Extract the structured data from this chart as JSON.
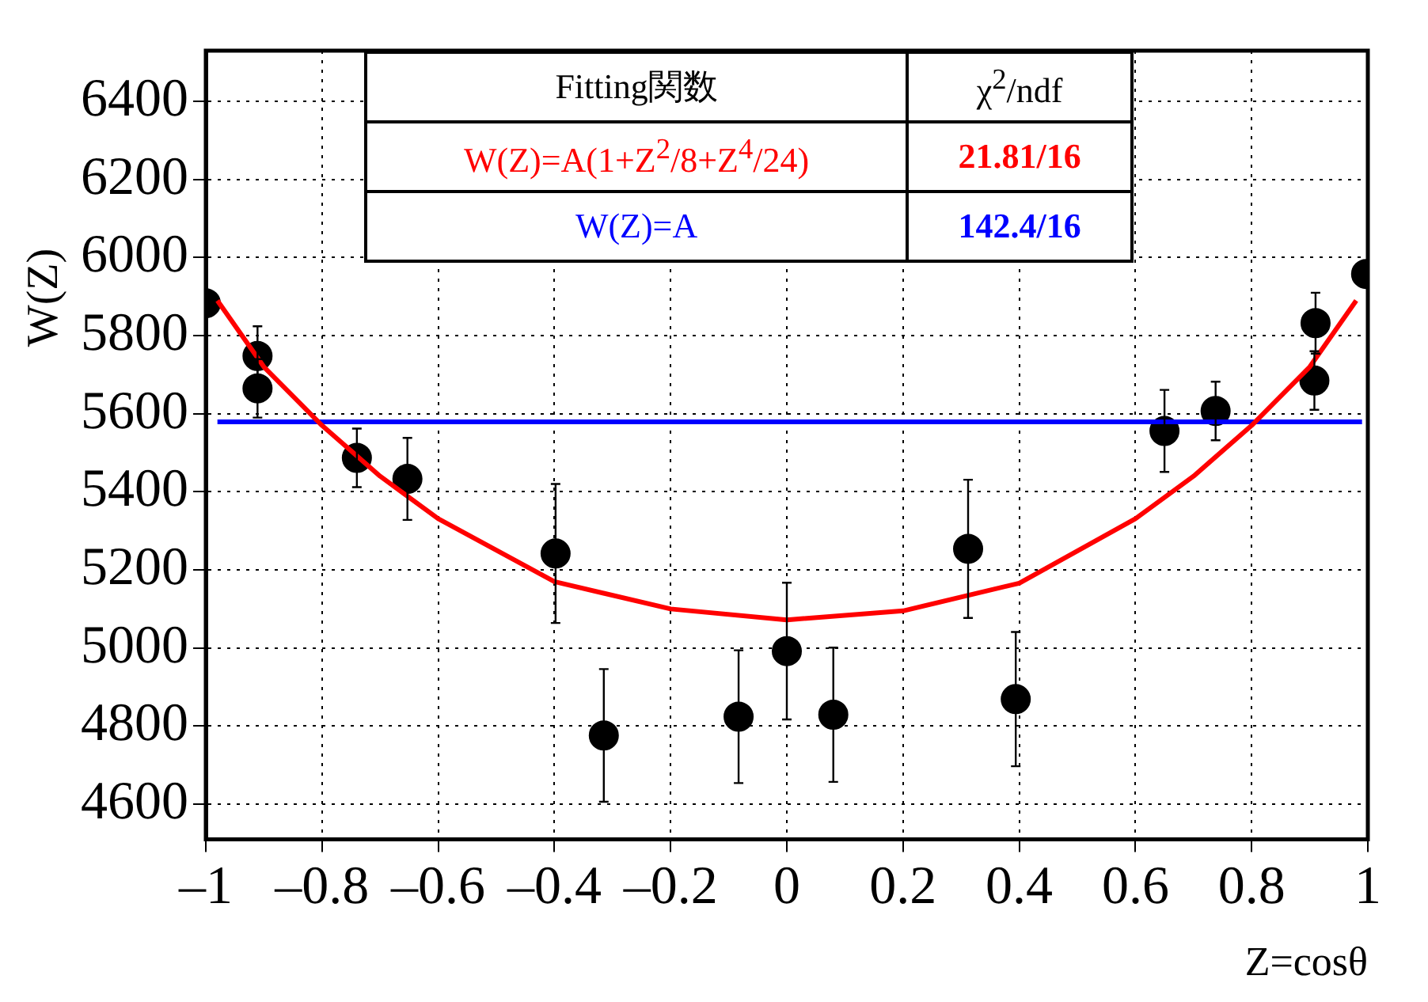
{
  "chart_data": {
    "type": "scatter",
    "xlabel": "Z=cosθ",
    "ylabel": "W(Z)",
    "x": [
      -1.0,
      -0.911,
      -0.911,
      -0.74,
      -0.653,
      -0.398,
      -0.315,
      -0.083,
      0.0,
      0.08,
      0.312,
      0.394,
      0.65,
      0.738,
      0.908,
      0.91,
      0.997
    ],
    "series": [
      {
        "color": "#000000",
        "marker": "circle",
        "values": [
          5883,
          5748,
          5665,
          5487,
          5433,
          5242,
          4776,
          4824,
          4992,
          4829,
          5254,
          4869,
          5556,
          5607,
          5685,
          5832,
          5958
        ],
        "errors": [
          null,
          76,
          75,
          75,
          105,
          178,
          170,
          170,
          175,
          172,
          177,
          172,
          105,
          75,
          75,
          78,
          null
        ]
      },
      {
        "type": "line",
        "name": "W(Z)=A(1+Z$^{2}$/8+Z$^{4}$/24)",
        "color": "#ff0000",
        "line_style": "solid",
        "marker": "none",
        "x": [
          -0.98,
          -0.9,
          -0.8,
          -0.7,
          -0.6,
          -0.4,
          -0.2,
          0,
          0.2,
          0.4,
          0.6,
          0.7,
          0.8,
          0.9,
          0.98
        ],
        "values": [
          5890,
          5720,
          5570,
          5440,
          5331,
          5170,
          5100,
          5072,
          5095,
          5166,
          5331,
          5440,
          5570,
          5720,
          5890
        ]
      },
      {
        "type": "line",
        "name": "W(Z)=A",
        "color": "#0000ff",
        "line_style": "solid",
        "marker": "none",
        "x": [
          -0.98,
          0.99
        ],
        "values": [
          5579,
          5579
        ]
      }
    ],
    "annotations": [
      "Fitting関数",
      "χ$^{2}$/ndf",
      "21.81/16",
      "142.4/16"
    ],
    "xlim": [
      -1,
      1
    ],
    "ylim": [
      4510,
      6530
    ],
    "xticks": [
      {
        "value": -1,
        "label": "–1"
      },
      {
        "value": -0.8,
        "label": "–0.8"
      },
      {
        "value": -0.6,
        "label": "–0.6"
      },
      {
        "value": -0.4,
        "label": "–0.4"
      },
      {
        "value": -0.2,
        "label": "–0.2"
      },
      0,
      0.2,
      0.4,
      0.6,
      0.8,
      1
    ],
    "yticks": [
      4600,
      4800,
      5000,
      5200,
      5400,
      5600,
      5800,
      6000,
      6200,
      6400
    ],
    "grid": true,
    "legend": "top"
  }
}
